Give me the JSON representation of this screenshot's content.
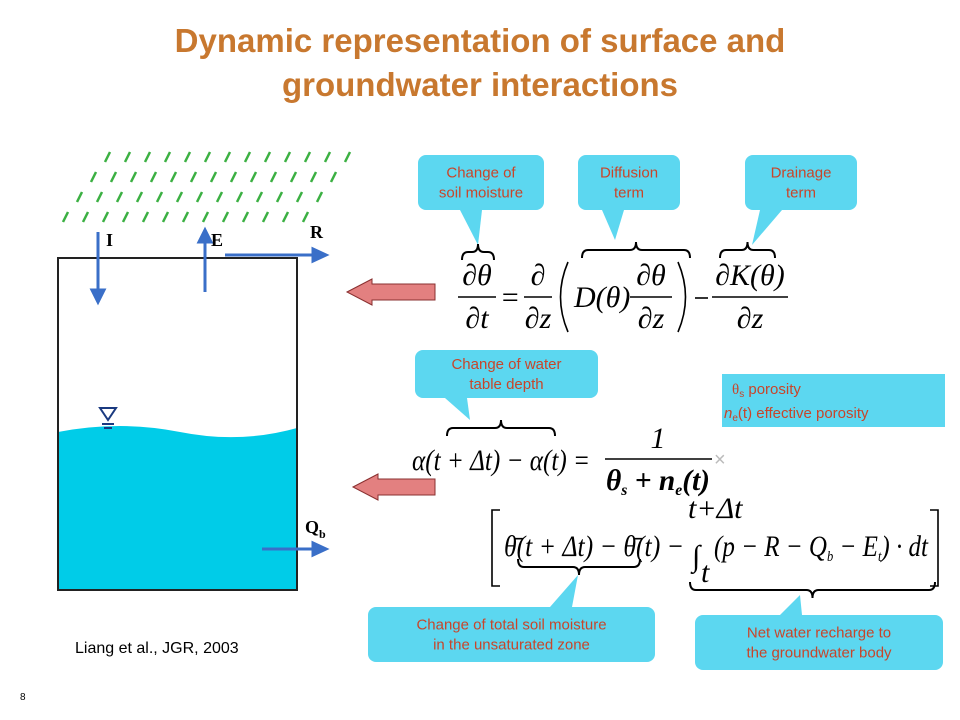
{
  "title": [
    "Dynamic representation of surface and",
    "groundwater interactions"
  ],
  "diagram": {
    "inflow": "I",
    "evaporation": "E",
    "runoff": "R",
    "baseflow": "Q",
    "baseflow_sub": "b"
  },
  "callouts": [
    {
      "lines": [
        "Change of",
        "soil moisture"
      ]
    },
    {
      "lines": [
        "Diffusion",
        "term"
      ]
    },
    {
      "lines": [
        "Drainage",
        "term"
      ]
    },
    {
      "lines": [
        "Change of water",
        "table depth"
      ]
    },
    {
      "lines": [
        "Change of  total soil moisture",
        "in the unsaturated zone"
      ]
    },
    {
      "lines": [
        "Net water recharge to",
        "the groundwater body"
      ]
    }
  ],
  "equation1": {
    "lhs_num": "∂θ",
    "lhs_den": "∂t",
    "equals": "=",
    "op_num": "∂",
    "op_den": "∂z",
    "coef": "D(θ)",
    "grad_num": "∂θ",
    "grad_den": "∂z",
    "minus": "−",
    "drain_num": "∂K(θ)",
    "drain_den": "∂z"
  },
  "equation2": {
    "lhs": "α(t + Δt) − α(t) =",
    "num": "1",
    "den": [
      "θ",
      "s",
      " + n",
      "e",
      "(t)"
    ],
    "times": "×"
  },
  "equation3": {
    "lhs": "θ̄(t + Δt) − θ̄(t) −",
    "integral": "∫",
    "upper": "t+Δt",
    "lower": "t",
    "integrand": [
      "(p − R − Q",
      "b",
      " − E",
      "t",
      ") · dt"
    ]
  },
  "legend": [
    [
      "θ",
      "s",
      "  porosity"
    ],
    [
      "n",
      "e",
      "(t)  effective porosity"
    ]
  ],
  "citation": "Liang et al., JGR, 2003",
  "page_number": "8"
}
